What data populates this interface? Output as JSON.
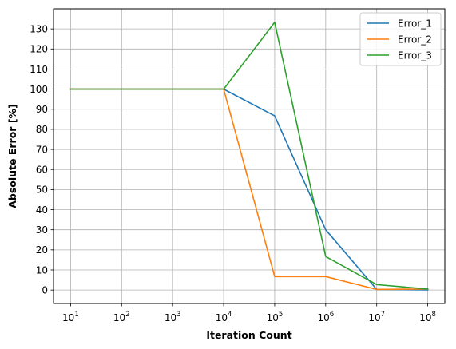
{
  "chart_data": {
    "type": "line",
    "x_scale": "log",
    "x": [
      10,
      100,
      1000,
      10000,
      100000,
      1000000,
      10000000,
      100000000
    ],
    "x_ticks": [
      {
        "base": "10",
        "exp": "1"
      },
      {
        "base": "10",
        "exp": "2"
      },
      {
        "base": "10",
        "exp": "3"
      },
      {
        "base": "10",
        "exp": "4"
      },
      {
        "base": "10",
        "exp": "5"
      },
      {
        "base": "10",
        "exp": "6"
      },
      {
        "base": "10",
        "exp": "7"
      },
      {
        "base": "10",
        "exp": "8"
      }
    ],
    "y_ticks": [
      "0",
      "10",
      "20",
      "30",
      "40",
      "50",
      "60",
      "70",
      "80",
      "90",
      "100",
      "110",
      "120",
      "130"
    ],
    "ylim": [
      -6.7,
      140
    ],
    "xlabel": "Iteration Count",
    "ylabel": "Absolute Error [%]",
    "grid": true,
    "legend_position": "top-right",
    "series": [
      {
        "name": "Error_1",
        "color": "#1f77b4",
        "values": [
          100,
          100,
          100,
          100,
          86.7,
          30,
          0.3,
          0.1
        ]
      },
      {
        "name": "Error_2",
        "color": "#ff7f0e",
        "values": [
          100,
          100,
          100,
          100,
          6.7,
          6.7,
          0.3,
          0.5
        ]
      },
      {
        "name": "Error_3",
        "color": "#2ca02c",
        "values": [
          100,
          100,
          100,
          100,
          133.3,
          16.7,
          2.7,
          0.5
        ]
      }
    ]
  }
}
